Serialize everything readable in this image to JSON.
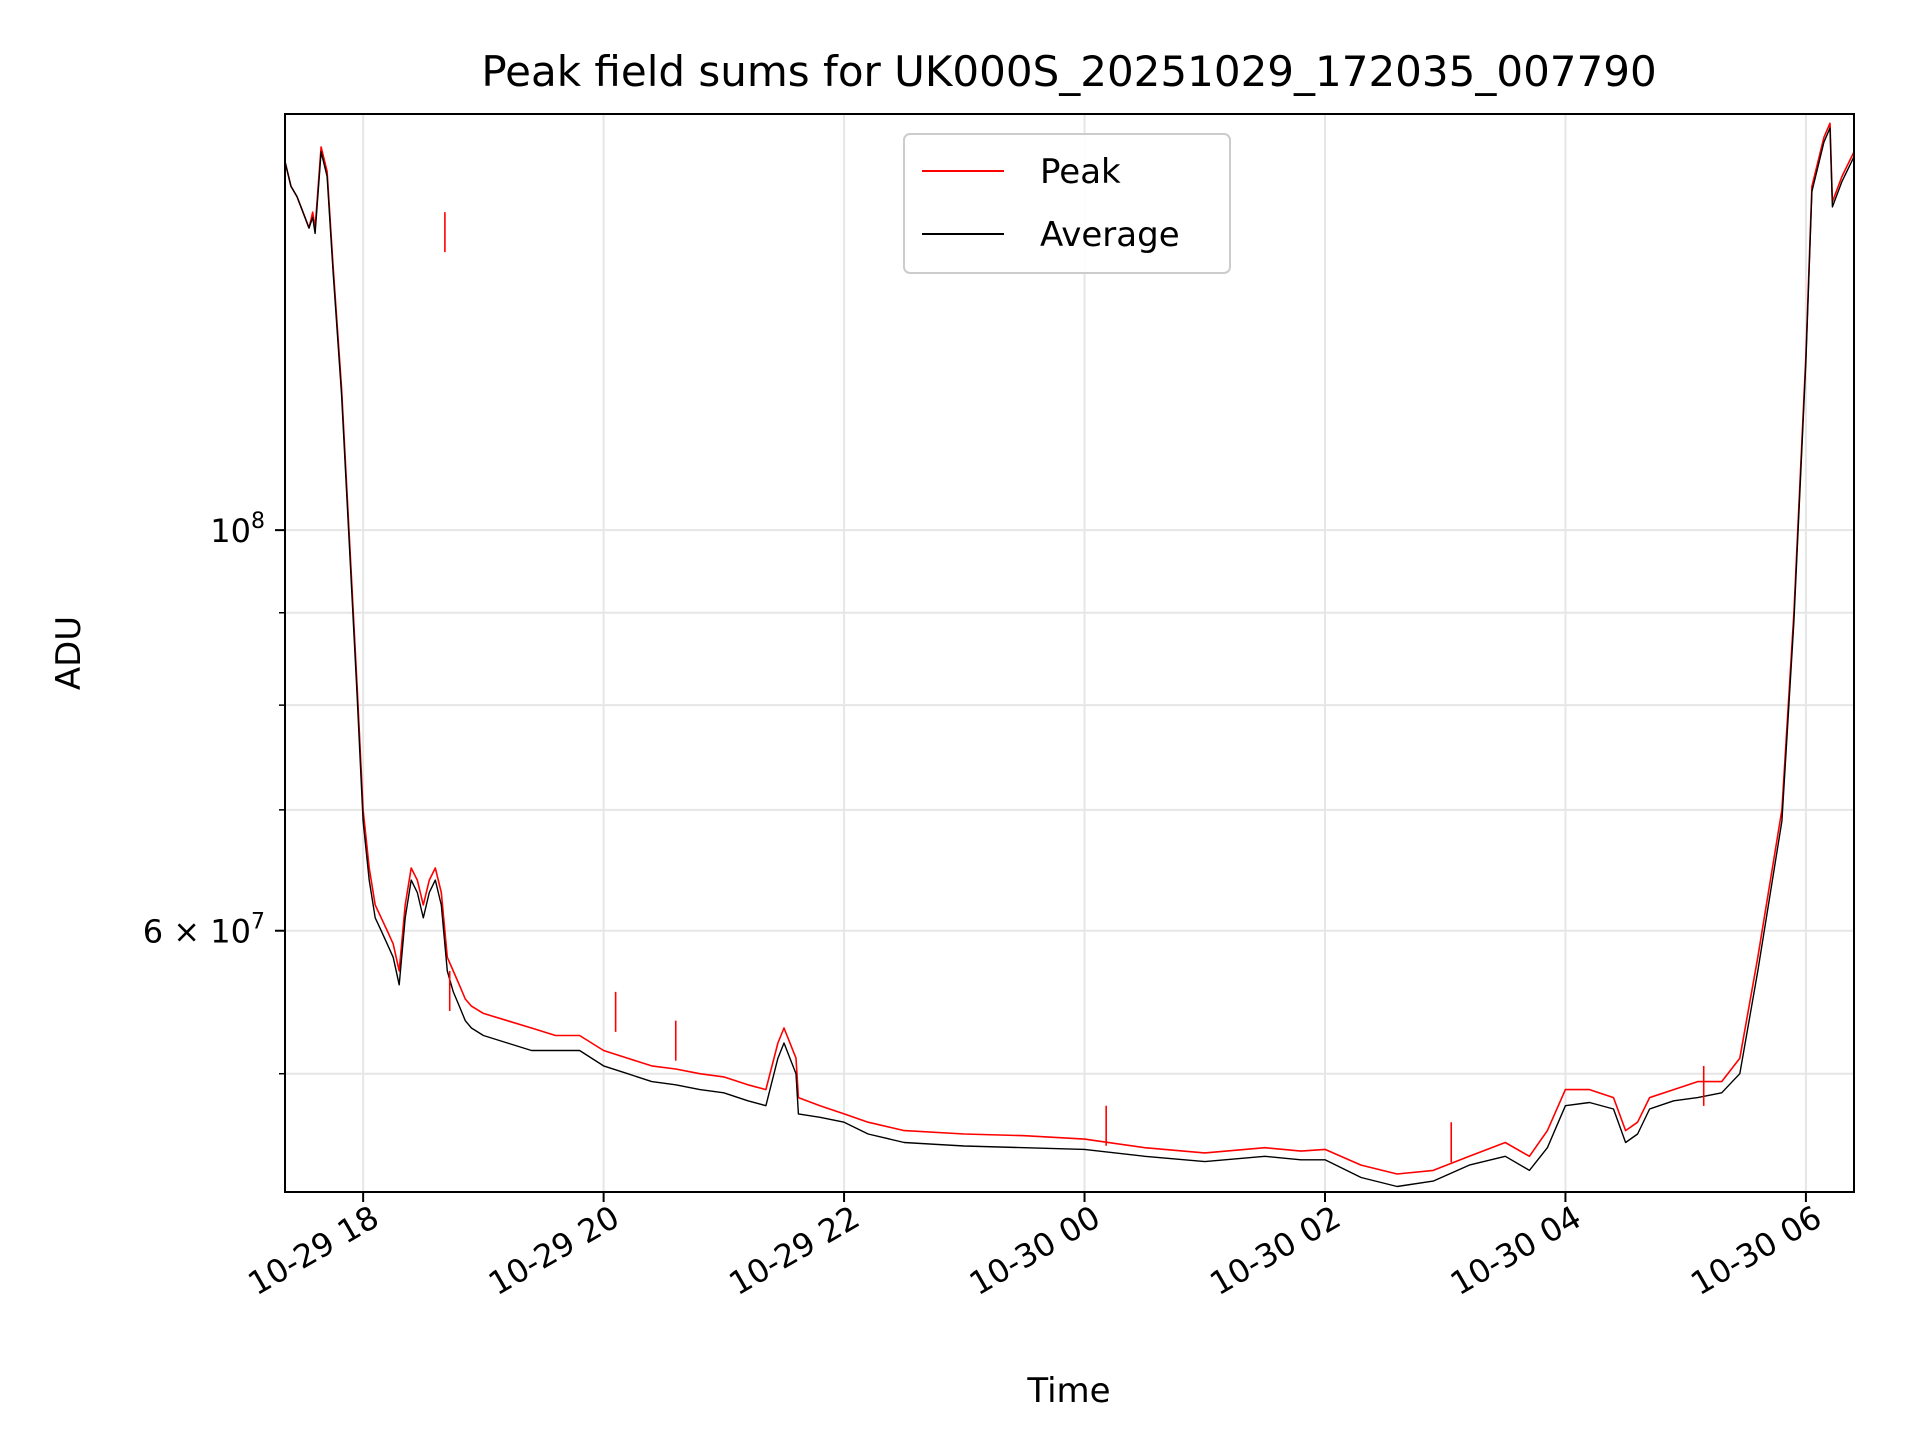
{
  "chart_data": {
    "type": "line",
    "title": "Peak field sums for UK000S_20251029_172035_007790",
    "xlabel": "Time",
    "ylabel": "ADU",
    "yscale": "log",
    "ylim": [
      43000000,
      170000000
    ],
    "xlim_hours": [
      -0.65,
      12.4
    ],
    "grid": true,
    "legend_loc": "upper center",
    "x_ticks": [
      {
        "hour": 0,
        "label": "10-29 18"
      },
      {
        "hour": 2,
        "label": "10-29 20"
      },
      {
        "hour": 4,
        "label": "10-29 22"
      },
      {
        "hour": 6,
        "label": "10-30 00"
      },
      {
        "hour": 8,
        "label": "10-30 02"
      },
      {
        "hour": 10,
        "label": "10-30 04"
      },
      {
        "hour": 12,
        "label": "10-30 06"
      }
    ],
    "y_major_ticks": [
      {
        "value": 60000000,
        "mantissa": "6",
        "exponent": "7",
        "has_mantissa": true
      },
      {
        "value": 100000000,
        "mantissa": "",
        "exponent": "8",
        "has_mantissa": false
      }
    ],
    "y_minor_ticks": [
      50000000,
      70000000,
      80000000,
      90000000
    ],
    "series": [
      {
        "name": "Peak",
        "color": "#ff0000",
        "points": [
          [
            -0.65,
            160000000.0
          ],
          [
            -0.6,
            155000000.0
          ],
          [
            -0.55,
            153000000.0
          ],
          [
            -0.5,
            150000000.0
          ],
          [
            -0.45,
            147000000.0
          ],
          [
            -0.42,
            150000000.0
          ],
          [
            -0.4,
            147000000.0
          ],
          [
            -0.35,
            163000000.0
          ],
          [
            -0.3,
            158000000.0
          ],
          [
            -0.25,
            140000000.0
          ],
          [
            -0.18,
            120000000.0
          ],
          [
            -0.1,
            95000000.0
          ],
          [
            -0.05,
            82000000.0
          ],
          [
            0.0,
            70000000.0
          ],
          [
            0.05,
            65000000.0
          ],
          [
            0.1,
            62000000.0
          ],
          [
            0.15,
            61000000.0
          ],
          [
            0.2,
            60000000.0
          ],
          [
            0.25,
            59000000.0
          ],
          [
            0.3,
            57000000.0
          ],
          [
            0.35,
            62000000.0
          ],
          [
            0.4,
            65000000.0
          ],
          [
            0.45,
            64000000.0
          ],
          [
            0.5,
            62000000.0
          ],
          [
            0.55,
            64000000.0
          ],
          [
            0.6,
            65000000.0
          ],
          [
            0.65,
            63000000.0
          ],
          [
            0.7,
            58000000.0
          ],
          [
            0.75,
            57000000.0
          ],
          [
            0.8,
            56000000.0
          ],
          [
            0.85,
            55000000.0
          ],
          [
            0.9,
            54500000.0
          ],
          [
            1.0,
            54000000.0
          ],
          [
            1.2,
            53500000.0
          ],
          [
            1.4,
            53000000.0
          ],
          [
            1.6,
            52500000.0
          ],
          [
            1.8,
            52500000.0
          ],
          [
            2.0,
            51500000.0
          ],
          [
            2.2,
            51000000.0
          ],
          [
            2.4,
            50500000.0
          ],
          [
            2.6,
            50300000.0
          ],
          [
            2.8,
            50000000.0
          ],
          [
            3.0,
            49800000.0
          ],
          [
            3.2,
            49300000.0
          ],
          [
            3.35,
            49000000.0
          ],
          [
            3.45,
            52000000.0
          ],
          [
            3.5,
            53000000.0
          ],
          [
            3.6,
            51000000.0
          ],
          [
            3.62,
            48500000.0
          ],
          [
            3.8,
            48000000.0
          ],
          [
            4.0,
            47500000.0
          ],
          [
            4.2,
            47000000.0
          ],
          [
            4.5,
            46500000.0
          ],
          [
            5.0,
            46300000.0
          ],
          [
            5.5,
            46200000.0
          ],
          [
            6.0,
            46000000.0
          ],
          [
            6.5,
            45500000.0
          ],
          [
            7.0,
            45200000.0
          ],
          [
            7.5,
            45500000.0
          ],
          [
            7.8,
            45300000.0
          ],
          [
            8.0,
            45400000.0
          ],
          [
            8.3,
            44500000.0
          ],
          [
            8.6,
            44000000.0
          ],
          [
            8.9,
            44200000.0
          ],
          [
            9.2,
            45000000.0
          ],
          [
            9.5,
            45800000.0
          ],
          [
            9.7,
            45000000.0
          ],
          [
            9.85,
            46500000.0
          ],
          [
            10.0,
            49000000.0
          ],
          [
            10.2,
            49000000.0
          ],
          [
            10.4,
            48500000.0
          ],
          [
            10.5,
            46500000.0
          ],
          [
            10.6,
            47000000.0
          ],
          [
            10.7,
            48500000.0
          ],
          [
            10.9,
            49000000.0
          ],
          [
            11.1,
            49500000.0
          ],
          [
            11.3,
            49500000.0
          ],
          [
            11.45,
            51000000.0
          ],
          [
            11.6,
            58000000.0
          ],
          [
            11.8,
            70000000.0
          ],
          [
            11.9,
            90000000.0
          ],
          [
            12.0,
            125000000.0
          ],
          [
            12.05,
            155000000.0
          ],
          [
            12.15,
            165000000.0
          ],
          [
            12.2,
            168000000.0
          ],
          [
            12.22,
            152000000.0
          ],
          [
            12.3,
            157000000.0
          ],
          [
            12.4,
            162000000.0
          ]
        ]
      },
      {
        "name": "Average",
        "color": "#000000",
        "points": [
          [
            -0.65,
            160000000.0
          ],
          [
            -0.6,
            155000000.0
          ],
          [
            -0.55,
            153000000.0
          ],
          [
            -0.5,
            150000000.0
          ],
          [
            -0.45,
            147000000.0
          ],
          [
            -0.42,
            149000000.0
          ],
          [
            -0.4,
            146000000.0
          ],
          [
            -0.35,
            162000000.0
          ],
          [
            -0.3,
            157000000.0
          ],
          [
            -0.25,
            139000000.0
          ],
          [
            -0.18,
            119000000.0
          ],
          [
            -0.1,
            94000000.0
          ],
          [
            -0.05,
            81000000.0
          ],
          [
            0.0,
            69000000.0
          ],
          [
            0.05,
            64000000.0
          ],
          [
            0.1,
            61000000.0
          ],
          [
            0.15,
            60000000.0
          ],
          [
            0.2,
            59000000.0
          ],
          [
            0.25,
            58000000.0
          ],
          [
            0.3,
            56000000.0
          ],
          [
            0.35,
            61000000.0
          ],
          [
            0.4,
            64000000.0
          ],
          [
            0.45,
            63000000.0
          ],
          [
            0.5,
            61000000.0
          ],
          [
            0.55,
            63000000.0
          ],
          [
            0.6,
            64000000.0
          ],
          [
            0.65,
            62000000.0
          ],
          [
            0.7,
            57000000.0
          ],
          [
            0.75,
            55500000.0
          ],
          [
            0.8,
            54500000.0
          ],
          [
            0.85,
            53500000.0
          ],
          [
            0.9,
            53000000.0
          ],
          [
            1.0,
            52500000.0
          ],
          [
            1.2,
            52000000.0
          ],
          [
            1.4,
            51500000.0
          ],
          [
            1.6,
            51500000.0
          ],
          [
            1.8,
            51500000.0
          ],
          [
            2.0,
            50500000.0
          ],
          [
            2.2,
            50000000.0
          ],
          [
            2.4,
            49500000.0
          ],
          [
            2.6,
            49300000.0
          ],
          [
            2.8,
            49000000.0
          ],
          [
            3.0,
            48800000.0
          ],
          [
            3.2,
            48300000.0
          ],
          [
            3.35,
            48000000.0
          ],
          [
            3.45,
            51000000.0
          ],
          [
            3.5,
            52000000.0
          ],
          [
            3.6,
            50000000.0
          ],
          [
            3.62,
            47500000.0
          ],
          [
            3.8,
            47300000.0
          ],
          [
            4.0,
            47000000.0
          ],
          [
            4.2,
            46300000.0
          ],
          [
            4.5,
            45800000.0
          ],
          [
            5.0,
            45600000.0
          ],
          [
            5.5,
            45500000.0
          ],
          [
            6.0,
            45400000.0
          ],
          [
            6.5,
            45000000.0
          ],
          [
            7.0,
            44700000.0
          ],
          [
            7.5,
            45000000.0
          ],
          [
            7.8,
            44800000.0
          ],
          [
            8.0,
            44800000.0
          ],
          [
            8.3,
            43800000.0
          ],
          [
            8.6,
            43300000.0
          ],
          [
            8.9,
            43600000.0
          ],
          [
            9.2,
            44500000.0
          ],
          [
            9.5,
            45000000.0
          ],
          [
            9.7,
            44200000.0
          ],
          [
            9.85,
            45500000.0
          ],
          [
            10.0,
            48000000.0
          ],
          [
            10.2,
            48200000.0
          ],
          [
            10.4,
            47800000.0
          ],
          [
            10.5,
            45800000.0
          ],
          [
            10.6,
            46300000.0
          ],
          [
            10.7,
            47800000.0
          ],
          [
            10.9,
            48300000.0
          ],
          [
            11.1,
            48500000.0
          ],
          [
            11.3,
            48800000.0
          ],
          [
            11.45,
            50000000.0
          ],
          [
            11.6,
            57000000.0
          ],
          [
            11.8,
            69000000.0
          ],
          [
            11.9,
            89000000.0
          ],
          [
            12.0,
            124000000.0
          ],
          [
            12.05,
            154000000.0
          ],
          [
            12.15,
            164000000.0
          ],
          [
            12.2,
            167000000.0
          ],
          [
            12.22,
            151000000.0
          ],
          [
            12.3,
            156000000.0
          ],
          [
            12.4,
            161000000.0
          ]
        ]
      }
    ],
    "spikes": [
      {
        "hour": 0.68,
        "top": 150000000.0
      },
      {
        "hour": 0.72,
        "top": 57000000.0
      },
      {
        "hour": 2.1,
        "top": 55500000.0
      },
      {
        "hour": 2.6,
        "top": 53500000.0
      },
      {
        "hour": 6.18,
        "top": 48000000.0
      },
      {
        "hour": 9.05,
        "top": 47000000.0
      },
      {
        "hour": 11.15,
        "top": 50500000.0
      }
    ]
  }
}
